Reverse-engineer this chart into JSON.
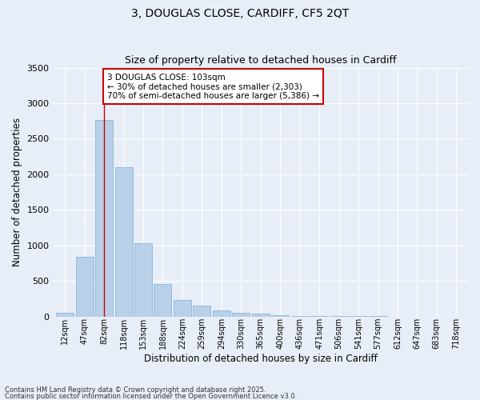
{
  "title1": "3, DOUGLAS CLOSE, CARDIFF, CF5 2QT",
  "title2": "Size of property relative to detached houses in Cardiff",
  "xlabel": "Distribution of detached houses by size in Cardiff",
  "ylabel": "Number of detached properties",
  "categories": [
    "12sqm",
    "47sqm",
    "82sqm",
    "118sqm",
    "153sqm",
    "188sqm",
    "224sqm",
    "259sqm",
    "294sqm",
    "330sqm",
    "365sqm",
    "400sqm",
    "436sqm",
    "471sqm",
    "506sqm",
    "541sqm",
    "577sqm",
    "612sqm",
    "647sqm",
    "683sqm",
    "718sqm"
  ],
  "values": [
    55,
    840,
    2760,
    2100,
    1035,
    460,
    235,
    155,
    80,
    50,
    35,
    18,
    8,
    3,
    2,
    1,
    1,
    0,
    0,
    0,
    0
  ],
  "bar_color": "#b8d0e8",
  "bar_edge_color": "#7aafd4",
  "bg_color": "#e8eef8",
  "grid_color": "#ffffff",
  "vline_x": 2,
  "vline_color": "#cc0000",
  "annotation_text": "3 DOUGLAS CLOSE: 103sqm\n← 30% of detached houses are smaller (2,303)\n70% of semi-detached houses are larger (5,386) →",
  "annotation_box_color": "#cc0000",
  "footer1": "Contains HM Land Registry data © Crown copyright and database right 2025.",
  "footer2": "Contains public sector information licensed under the Open Government Licence v3.0.",
  "ylim": [
    0,
    3500
  ],
  "yticks": [
    0,
    500,
    1000,
    1500,
    2000,
    2500,
    3000,
    3500
  ]
}
